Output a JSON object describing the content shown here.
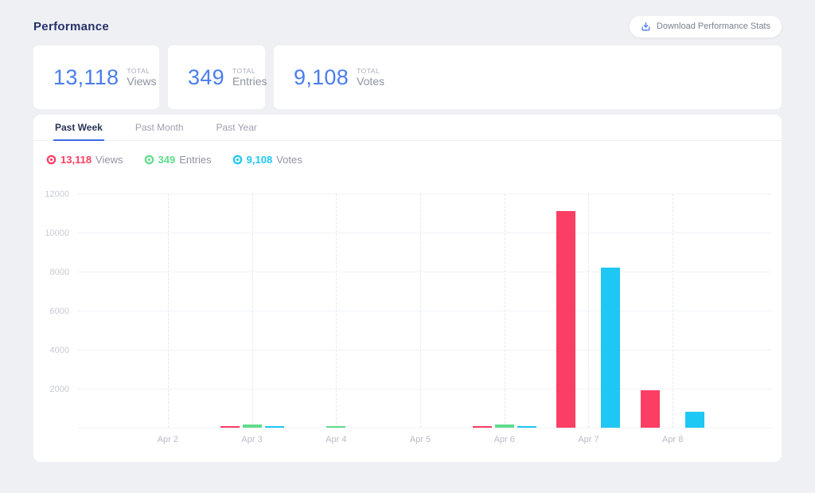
{
  "header": {
    "title": "Performance",
    "download_button": {
      "label": "Download Performance Stats"
    }
  },
  "stats": {
    "items": [
      {
        "value": "13,118",
        "total_label": "TOTAL",
        "label": "Views"
      },
      {
        "value": "349",
        "total_label": "TOTAL",
        "label": "Entries"
      },
      {
        "value": "9,108",
        "total_label": "TOTAL",
        "label": "Votes"
      }
    ]
  },
  "tabs": {
    "items": [
      {
        "label": "Past Week",
        "active": true
      },
      {
        "label": "Past Month",
        "active": false
      },
      {
        "label": "Past Year",
        "active": false
      }
    ]
  },
  "legend": {
    "items": [
      {
        "icon": "eye-icon",
        "value": "13,118",
        "label": "Views",
        "color": "#FB3E63"
      },
      {
        "icon": "eye-icon",
        "value": "349",
        "label": "Entries",
        "color": "#5FDD8B"
      },
      {
        "icon": "eye-icon",
        "value": "9,108",
        "label": "Votes",
        "color": "#1FC7F4"
      }
    ]
  },
  "colors": {
    "accent_blue": "#4A7DEE",
    "title_navy": "#263168",
    "tab_underline": "#3E6BE4",
    "page_bg": "#EEF0F4",
    "views_red": "#FB3E63",
    "entries_green": "#5FDD8B",
    "votes_cyan": "#1FC7F4"
  },
  "chart_data": {
    "type": "bar",
    "title": "",
    "categories": [
      "Apr 2",
      "Apr 3",
      "Apr 4",
      "Apr 5",
      "Apr 6",
      "Apr 7",
      "Apr 8"
    ],
    "series": [
      {
        "name": "Views",
        "color": "#FB3E63",
        "values": [
          0,
          28,
          0,
          0,
          90,
          11100,
          1900
        ]
      },
      {
        "name": "Entries",
        "color": "#5FDD8B",
        "values": [
          0,
          150,
          50,
          0,
          149,
          0,
          0
        ]
      },
      {
        "name": "Votes",
        "color": "#1FC7F4",
        "values": [
          0,
          28,
          0,
          0,
          80,
          8200,
          800
        ]
      }
    ],
    "xlabel": "",
    "ylabel": "",
    "ylim": [
      0,
      12000
    ],
    "yticks": [
      12000,
      10000,
      8000,
      6000,
      4000,
      2000
    ],
    "grid": "horizontal solid lines at y ticks, vertical dashed lines at category centers",
    "legend_position": "top-left above chart"
  }
}
